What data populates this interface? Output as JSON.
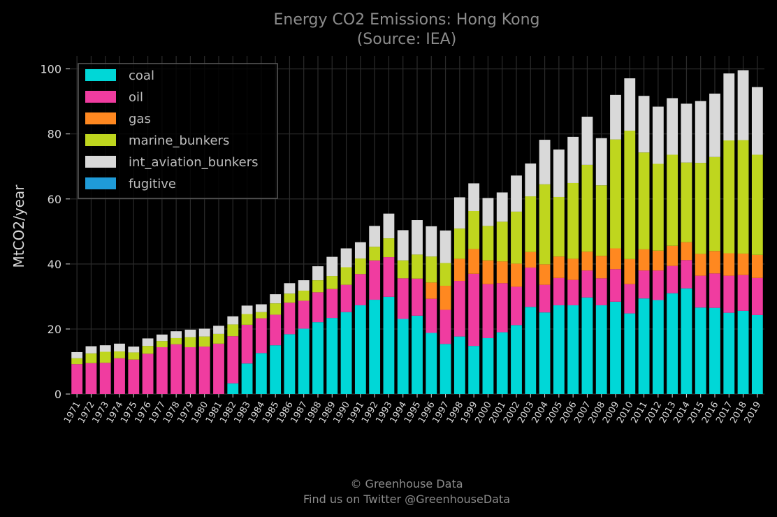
{
  "chart_data": {
    "type": "bar",
    "stacked": true,
    "title": "Energy CO2 Emissions: Hong Kong",
    "subtitle": "(Source: IEA)",
    "xlabel": "",
    "ylabel": "MtCO2/year",
    "ylim": [
      0,
      104
    ],
    "yticks": [
      0,
      20,
      40,
      60,
      80,
      100
    ],
    "grid": true,
    "legend_position": "top-left",
    "categories": [
      "1971",
      "1972",
      "1973",
      "1974",
      "1975",
      "1976",
      "1977",
      "1978",
      "1979",
      "1980",
      "1981",
      "1982",
      "1983",
      "1984",
      "1985",
      "1986",
      "1987",
      "1988",
      "1989",
      "1990",
      "1991",
      "1992",
      "1993",
      "1994",
      "1995",
      "1996",
      "1997",
      "1998",
      "1999",
      "2000",
      "2001",
      "2002",
      "2003",
      "2004",
      "2005",
      "2006",
      "2007",
      "2008",
      "2009",
      "2010",
      "2011",
      "2012",
      "2013",
      "2014",
      "2015",
      "2016",
      "2017",
      "2018",
      "2019"
    ],
    "series": [
      {
        "name": "coal",
        "color": "#00d7d7",
        "values": [
          0,
          0,
          0,
          0,
          0,
          0,
          0,
          0,
          0,
          0,
          0,
          3.3,
          9.4,
          12.6,
          15.0,
          18.4,
          20.1,
          22.1,
          23.4,
          25.2,
          27.3,
          29.0,
          29.9,
          23.1,
          24.1,
          18.8,
          15.4,
          17.7,
          14.8,
          17.2,
          19.0,
          21.2,
          26.8,
          25.1,
          27.3,
          27.3,
          29.7,
          27.3,
          28.4,
          24.8,
          29.4,
          28.9,
          31.0,
          32.5,
          26.6,
          26.5,
          25.0,
          25.6,
          24.3
        ]
      },
      {
        "name": "oil",
        "color": "#f03ca0",
        "values": [
          9.2,
          9.5,
          9.6,
          11.0,
          10.6,
          12.4,
          14.4,
          15.3,
          14.4,
          14.6,
          15.5,
          14.5,
          11.9,
          10.7,
          9.4,
          9.7,
          8.6,
          9.2,
          8.9,
          8.4,
          9.6,
          12.1,
          12.2,
          12.5,
          11.4,
          10.5,
          10.5,
          17.1,
          22.2,
          16.6,
          15.1,
          11.8,
          12.1,
          8.5,
          8.4,
          7.8,
          8.3,
          8.3,
          10.0,
          9.0,
          8.6,
          9.1,
          8.4,
          8.7,
          9.8,
          10.6,
          11.4,
          11.0,
          11.4
        ]
      },
      {
        "name": "gas",
        "color": "#ff8820",
        "values": [
          0,
          0,
          0,
          0,
          0,
          0,
          0,
          0,
          0,
          0,
          0,
          0,
          0,
          0,
          0,
          0,
          0,
          0,
          0,
          0,
          0,
          0,
          0,
          0,
          0,
          5.0,
          7.4,
          6.8,
          7.6,
          7.3,
          6.7,
          7.1,
          4.8,
          6.3,
          6.6,
          6.5,
          5.8,
          6.9,
          6.4,
          7.7,
          6.5,
          6.1,
          6.2,
          5.5,
          6.7,
          6.9,
          6.9,
          6.6,
          7.1
        ]
      },
      {
        "name": "marine_bunkers",
        "color": "#bfd61e",
        "values": [
          1.8,
          3.0,
          3.4,
          2.1,
          2.2,
          2.4,
          1.9,
          1.9,
          3.1,
          3.1,
          3.0,
          3.6,
          3.3,
          1.9,
          3.5,
          2.8,
          3.1,
          3.7,
          4.0,
          5.4,
          4.8,
          4.2,
          5.8,
          5.5,
          7.4,
          8.0,
          7.0,
          9.3,
          11.7,
          10.6,
          12.2,
          16.0,
          17.1,
          24.6,
          18.3,
          23.3,
          26.7,
          21.7,
          33.5,
          39.5,
          29.8,
          26.7,
          28.0,
          24.5,
          28.0,
          28.9,
          34.7,
          34.9,
          30.8
        ]
      },
      {
        "name": "int_aviation_bunkers",
        "color": "#d9d9d9",
        "values": [
          1.9,
          2.2,
          2.0,
          2.4,
          1.8,
          2.3,
          2.0,
          2.1,
          2.3,
          2.4,
          2.5,
          2.5,
          2.6,
          2.4,
          2.8,
          3.2,
          3.2,
          4.3,
          5.9,
          5.8,
          5.0,
          6.4,
          7.6,
          9.3,
          10.6,
          9.3,
          10.0,
          9.6,
          8.5,
          8.6,
          9.0,
          11.1,
          10.1,
          13.7,
          14.6,
          14.2,
          14.8,
          14.5,
          13.7,
          16.1,
          17.4,
          17.6,
          17.4,
          18.1,
          19.0,
          19.5,
          20.6,
          21.5,
          20.8
        ]
      },
      {
        "name": "fugitive",
        "color": "#1f9bd8",
        "values": [
          0,
          0,
          0,
          0,
          0,
          0,
          0,
          0,
          0,
          0,
          0,
          0,
          0,
          0,
          0,
          0,
          0,
          0,
          0,
          0,
          0,
          0,
          0,
          0,
          0,
          0,
          0,
          0,
          0,
          0,
          0,
          0,
          0,
          0,
          0,
          0,
          0,
          0,
          0,
          0,
          0,
          0,
          0,
          0,
          0,
          0,
          0,
          0,
          0
        ]
      }
    ]
  },
  "credits": {
    "line1": "© Greenhouse Data",
    "line2": "Find us on Twitter @GreenhouseData"
  }
}
